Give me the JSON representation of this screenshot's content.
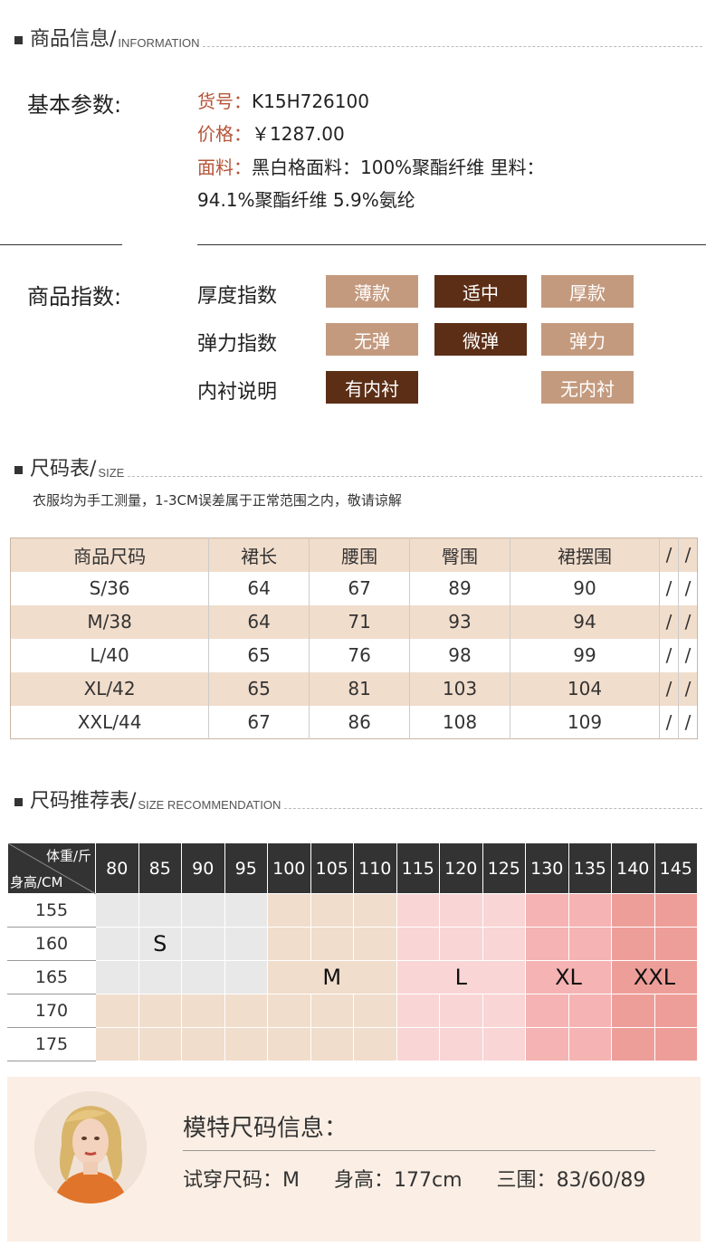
{
  "info": {
    "section_zh": "商品信息/",
    "section_en": "INFORMATION",
    "basic_label": "基本参数:",
    "item_no_key": "货号：",
    "item_no_val": "K15H726100",
    "price_key": "价格：",
    "price_val": "￥1287.00",
    "fabric_key": "面料：",
    "fabric_val": "黑白格面料：100%聚酯纤维 里料：",
    "fabric_val2": "94.1%聚酯纤维 5.9%氨纶"
  },
  "index": {
    "label": "商品指数:",
    "rows": [
      {
        "name": "厚度指数",
        "opts": [
          "薄款",
          "适中",
          "厚款"
        ]
      },
      {
        "name": "弹力指数",
        "opts": [
          "无弹",
          "微弹",
          "弹力"
        ]
      },
      {
        "name": "内衬说明",
        "opts": [
          "有内衬",
          "无内衬"
        ]
      }
    ]
  },
  "size": {
    "section_zh": "尺码表/",
    "section_en": "SIZE",
    "note": "衣服均为手工测量，1-3CM误差属于正常范围之内，敬请谅解",
    "headers": [
      "商品尺码",
      "裙长",
      "腰围",
      "臀围",
      "裙摆围",
      "/",
      "/"
    ],
    "rows": [
      [
        "S/36",
        "64",
        "67",
        "89",
        "90",
        "/",
        "/"
      ],
      [
        "M/38",
        "64",
        "71",
        "93",
        "94",
        "/",
        "/"
      ],
      [
        "L/40",
        "65",
        "76",
        "98",
        "99",
        "/",
        "/"
      ],
      [
        "XL/42",
        "65",
        "81",
        "103",
        "104",
        "/",
        "/"
      ],
      [
        "XXL/44",
        "67",
        "86",
        "108",
        "109",
        "/",
        "/"
      ]
    ]
  },
  "rec": {
    "section_zh": "尺码推荐表/",
    "section_en": "SIZE RECOMMENDATION",
    "corner_top": "体重/斤",
    "corner_bottom": "身高/CM",
    "weights": [
      "80",
      "85",
      "90",
      "95",
      "100",
      "105",
      "110",
      "115",
      "120",
      "125",
      "130",
      "135",
      "140",
      "145"
    ],
    "heights": [
      "155",
      "160",
      "165",
      "170",
      "175"
    ],
    "marks": {
      "s": "S",
      "m": "M",
      "l": "L",
      "xl": "XL",
      "xxl": "XXL"
    }
  },
  "model": {
    "title": "模特尺码信息：",
    "fit_key": "试穿尺码：",
    "fit_val": "M",
    "height_key": "身高：",
    "height_val": "177cm",
    "bust_key": "三围：",
    "bust_val": "83/60/89"
  }
}
